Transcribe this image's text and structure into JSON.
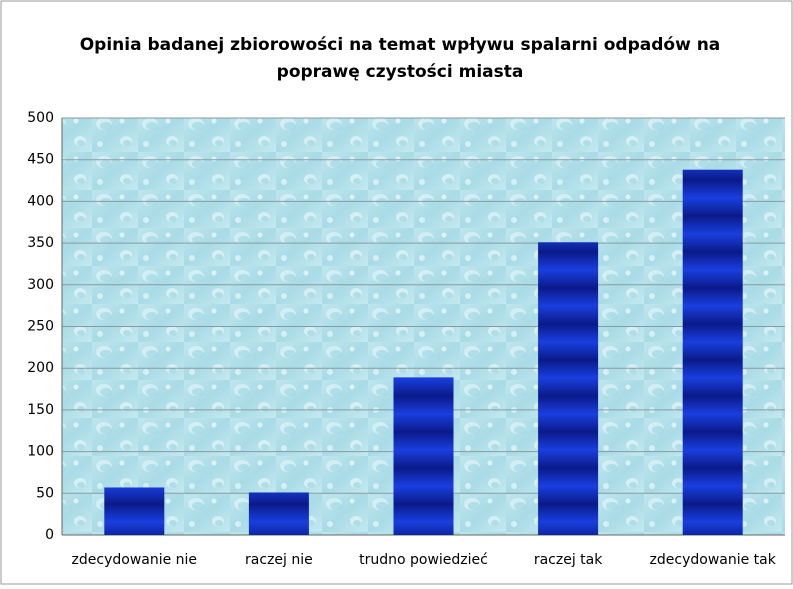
{
  "chart_data": {
    "type": "bar",
    "title": [
      "Opinia badanej zbiorowości na temat wpływu spalarni odpadów na",
      "poprawę czystości miasta"
    ],
    "categories": [
      "zdecydowanie nie",
      "raczej nie",
      "trudno powiedzieć",
      "raczej tak",
      "zdecydowanie tak"
    ],
    "values": [
      57,
      51,
      189,
      351,
      438
    ],
    "color": "#1a3fe0",
    "ylim": [
      0,
      500
    ],
    "yticks": [
      0,
      50,
      100,
      150,
      200,
      250,
      300,
      350,
      400,
      450,
      500
    ],
    "grid": true
  }
}
